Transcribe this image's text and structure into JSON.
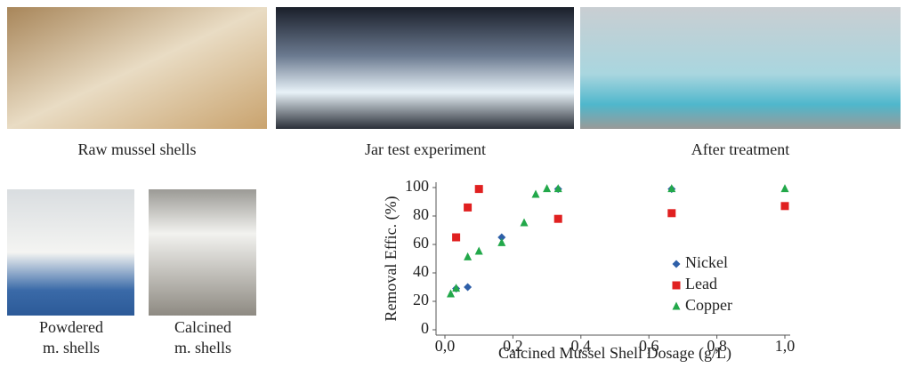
{
  "captions": {
    "raw": "Raw mussel shells",
    "jar": "Jar test experiment",
    "after": "After treatment",
    "powdered": [
      "Powdered",
      "m. shells"
    ],
    "calcined": [
      "Calcined",
      "m. shells"
    ]
  },
  "chart_data": {
    "type": "scatter",
    "xlabel": "Calcined Mussel Shell Dosage (g/L)",
    "ylabel": "Removal Effic. (%)",
    "xlim": [
      0,
      1
    ],
    "ylim": [
      0,
      100
    ],
    "xticks": [
      {
        "value": 0,
        "label": "0,0"
      },
      {
        "value": 0.2,
        "label": "0,2"
      },
      {
        "value": 0.4,
        "label": "0,4"
      },
      {
        "value": 0.6,
        "label": "0,6"
      },
      {
        "value": 0.8,
        "label": "0,8"
      },
      {
        "value": 1,
        "label": "1,0"
      }
    ],
    "yticks": [
      0,
      20,
      40,
      60,
      80,
      100
    ],
    "legend": "center-right",
    "series": [
      {
        "name": "Nickel",
        "color": "#2e5fa8",
        "marker": "diamond",
        "x": [
          0.033,
          0.067,
          0.167,
          0.333,
          0.667
        ],
        "values": [
          29,
          30,
          65,
          99,
          99
        ]
      },
      {
        "name": "Lead",
        "color": "#e02020",
        "marker": "square",
        "x": [
          0.033,
          0.067,
          0.1,
          0.333,
          0.667,
          1.0
        ],
        "values": [
          65,
          86,
          99,
          78,
          82,
          87
        ]
      },
      {
        "name": "Copper",
        "color": "#22a84a",
        "marker": "triangle",
        "x": [
          0.017,
          0.033,
          0.067,
          0.1,
          0.167,
          0.233,
          0.267,
          0.3,
          0.333,
          0.667,
          1.0
        ],
        "values": [
          25,
          29,
          51,
          55,
          61,
          75,
          95,
          99,
          99,
          99,
          99
        ]
      }
    ]
  }
}
